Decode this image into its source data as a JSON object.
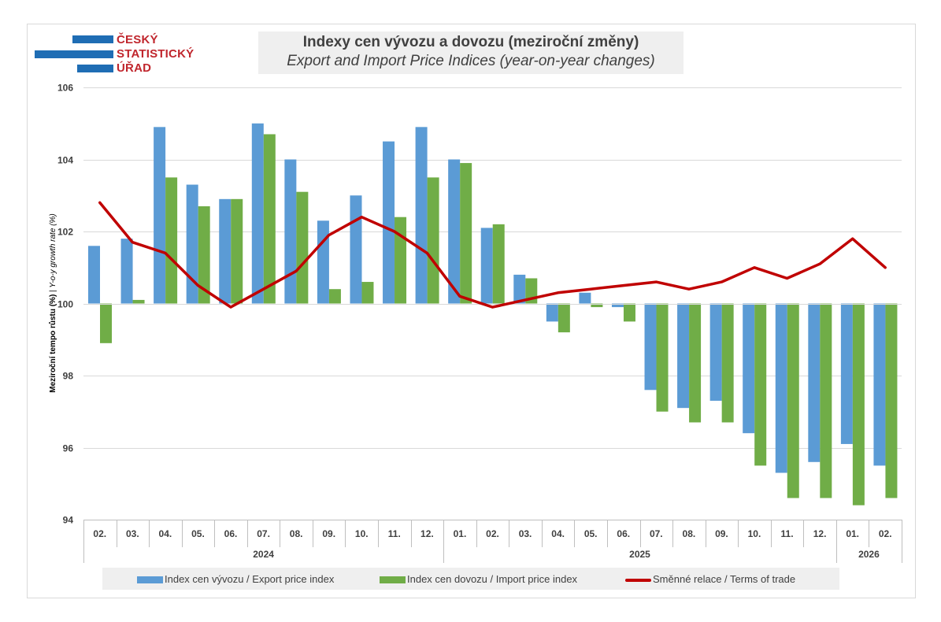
{
  "logo": {
    "lines": [
      "ČESKÝ",
      "STATISTICKÝ",
      "ÚŘAD"
    ]
  },
  "header": {
    "title": "Indexy cen vývozu a dovozu (meziroční změny)",
    "subtitle": "Export and Import Price Indices (year-on-year changes)"
  },
  "y_axis": {
    "label_cz": "Meziroční tempo růstu (%)",
    "separator": " | ",
    "label_en": "Y-o-y growth rate (%)"
  },
  "colors": {
    "export": "#5b9bd5",
    "import": "#70ad47",
    "terms": "#c00000",
    "grid": "#d9d9d9",
    "axis": "#bfbfbf"
  },
  "chart_data": {
    "type": "bar",
    "categories": [
      "02.",
      "03.",
      "04.",
      "05.",
      "06.",
      "07.",
      "08.",
      "09.",
      "10.",
      "11.",
      "12.",
      "01.",
      "02.",
      "03.",
      "04.",
      "05.",
      "06.",
      "07.",
      "08.",
      "09.",
      "10.",
      "11.",
      "12.",
      "01.",
      "02."
    ],
    "years": [
      {
        "label": "2024",
        "count": 11
      },
      {
        "label": "2025",
        "count": 12
      },
      {
        "label": "2026",
        "count": 2
      }
    ],
    "baseline": 100,
    "ylim": [
      94,
      106
    ],
    "yticks": [
      94,
      96,
      98,
      100,
      102,
      104,
      106
    ],
    "grid": true,
    "series": [
      {
        "name": "Index cen vývozu / Export price index",
        "kind": "bar",
        "values": [
          101.6,
          101.8,
          104.9,
          103.3,
          102.9,
          105.0,
          104.0,
          102.3,
          103.0,
          104.5,
          104.9,
          104.0,
          102.1,
          100.8,
          99.5,
          100.3,
          99.9,
          97.6,
          97.1,
          97.3,
          96.4,
          95.3,
          95.6,
          96.1,
          95.5
        ]
      },
      {
        "name": "Index cen dovozu / Import price index",
        "kind": "bar",
        "values": [
          98.9,
          100.1,
          103.5,
          102.7,
          102.9,
          104.7,
          103.1,
          100.4,
          100.6,
          102.4,
          103.5,
          103.9,
          102.2,
          100.7,
          99.2,
          99.9,
          99.5,
          97.0,
          96.7,
          96.7,
          95.5,
          94.6,
          94.6,
          94.4,
          94.6
        ]
      },
      {
        "name": "Směnné relace / Terms of trade",
        "kind": "line",
        "values": [
          102.8,
          101.7,
          101.4,
          100.5,
          99.9,
          100.4,
          100.9,
          101.9,
          102.4,
          102.0,
          101.4,
          100.2,
          99.9,
          100.1,
          100.3,
          100.4,
          100.5,
          100.6,
          100.4,
          100.6,
          101.0,
          100.7,
          101.1,
          101.8,
          101.0
        ]
      }
    ],
    "legend": "bottom"
  }
}
